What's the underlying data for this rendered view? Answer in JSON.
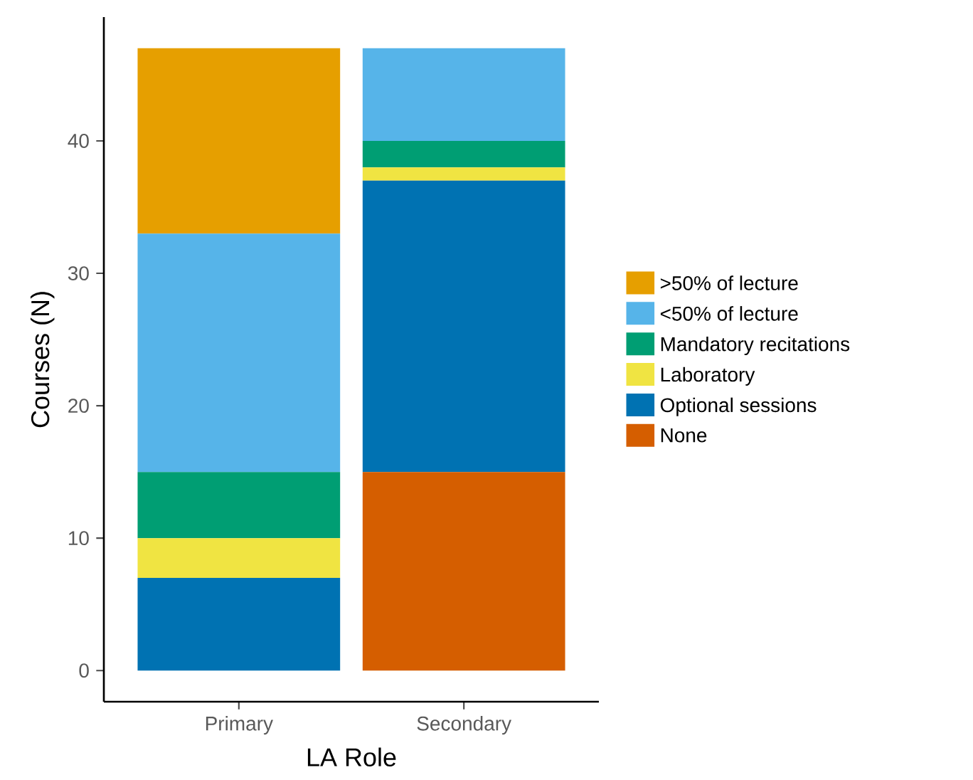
{
  "chart_data": {
    "type": "bar",
    "stacked": true,
    "xlabel": "LA Role",
    "ylabel": "Courses (N)",
    "categories": [
      "Primary",
      "Secondary"
    ],
    "series": [
      {
        "name": "None",
        "color": "#d55e00",
        "values": [
          0,
          15
        ]
      },
      {
        "name": "Optional sessions",
        "color": "#0072b2",
        "values": [
          7,
          22
        ]
      },
      {
        "name": "Laboratory",
        "color": "#f0e442",
        "values": [
          3,
          1
        ]
      },
      {
        "name": "Mandatory recitations",
        "color": "#009e73",
        "values": [
          5,
          2
        ]
      },
      {
        "name": "<50% of lecture",
        "color": "#56b4e9",
        "values": [
          18,
          7
        ]
      },
      {
        "name": ">50% of lecture",
        "color": "#e69f00",
        "values": [
          14,
          0
        ]
      }
    ],
    "ylim": [
      -2.35,
      49.35
    ],
    "yticks": [
      0,
      10,
      20,
      30,
      40
    ],
    "grid": false,
    "legend": "right"
  }
}
